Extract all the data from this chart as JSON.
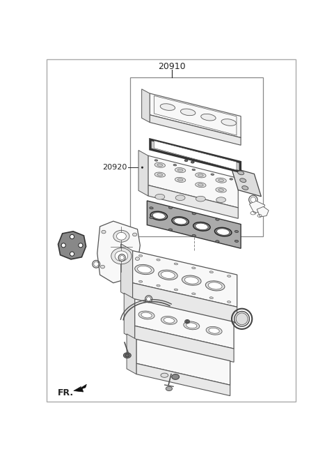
{
  "title": "20910",
  "label_20920": "20920",
  "label_fr": "FR.",
  "bg_color": "#ffffff",
  "line_color": "#555555",
  "dark_color": "#222222",
  "mid_gray": "#888888",
  "light_gray": "#dddddd",
  "fill_light": "#f8f8f8",
  "fill_mid": "#eeeeee"
}
